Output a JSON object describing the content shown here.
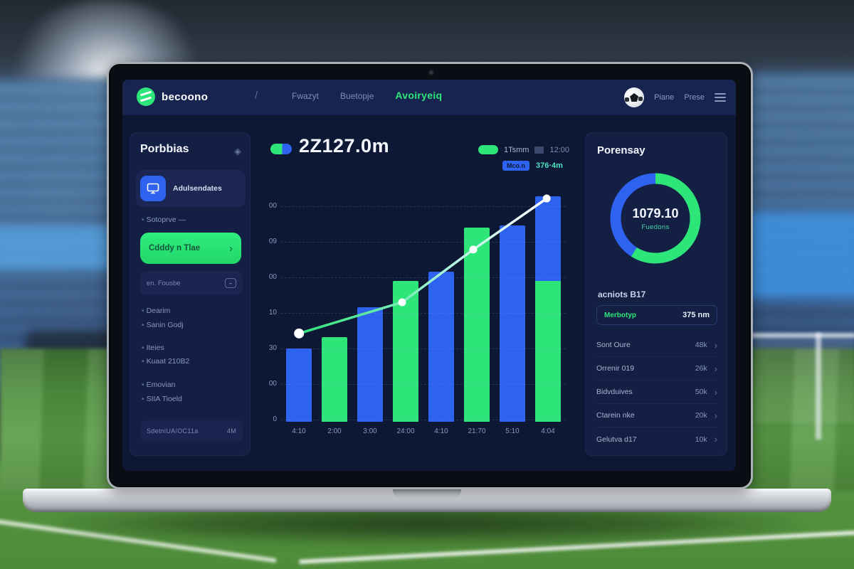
{
  "topbar": {
    "brand": "becoono",
    "divider": "/",
    "nav": [
      {
        "label": "Fwazyt",
        "active": false
      },
      {
        "label": "Buetopje",
        "active": false
      },
      {
        "label": "Avoiryeiq",
        "active": true
      }
    ],
    "right": {
      "item1": "Piane",
      "item2": "Prese"
    }
  },
  "sidebar": {
    "title": "Porbbias",
    "collapse_icon": "◈",
    "active_item": "Adulsendates",
    "section_label": "Sotoprve —",
    "cta_label": "Cdddy n Tlae",
    "cta_arrow": "›",
    "input_label": "en. Fousbe",
    "links": [
      "Dearim",
      "Sanin Godj",
      "Iteies",
      "Kuaat 210B2",
      "Emovian",
      "SIIA Tioeld"
    ],
    "footer": {
      "label": "SdetniUA/OC11a",
      "value": "4M"
    }
  },
  "main": {
    "stat_value": "2Z127.0m",
    "legend": {
      "toggle_label": "1Tsmm",
      "muted_value": "12:00",
      "badge": "Mco.n",
      "teal_value": "376·4m"
    }
  },
  "chart_data": {
    "type": "bar",
    "title": "2Z127.0m",
    "categories": [
      "4:10",
      "2:00",
      "3:00",
      "24:00",
      "4:10",
      "21:70",
      "5:10",
      "4:04"
    ],
    "y_ticks_top_to_bottom": [
      "00",
      "09",
      "00",
      "10",
      "30",
      "00",
      "0"
    ],
    "grid": true,
    "bars": [
      {
        "segments": [
          {
            "color": "blue",
            "pct": 31.7
          }
        ]
      },
      {
        "segments": [
          {
            "color": "green",
            "pct": 36.6
          }
        ]
      },
      {
        "segments": [
          {
            "color": "blue",
            "pct": 49.5
          }
        ]
      },
      {
        "segments": [
          {
            "color": "green",
            "pct": 61.0
          }
        ]
      },
      {
        "segments": [
          {
            "color": "blue",
            "pct": 65.0
          }
        ]
      },
      {
        "segments": [
          {
            "color": "green",
            "pct": 84.0
          }
        ]
      },
      {
        "segments": [
          {
            "color": "blue",
            "pct": 85.0
          }
        ]
      },
      {
        "segments": [
          {
            "color": "green",
            "pct": 61.0
          },
          {
            "color": "blue",
            "pct": 36.5
          }
        ]
      }
    ],
    "line_series": {
      "name": "trend",
      "points_pct": [
        {
          "x": 6.3,
          "y": 38.2
        },
        {
          "x": 42.5,
          "y": 51.7
        },
        {
          "x": 67.5,
          "y": 74.5
        },
        {
          "x": 93.3,
          "y": 96.6
        }
      ]
    }
  },
  "panel": {
    "title": "Porensay",
    "donut": {
      "value": "1079.10",
      "label": "Fuedons",
      "green_pct": 59,
      "blue_pct": 41
    },
    "section_label": "acniots B17",
    "highlight": {
      "label": "Merbotyp",
      "value": "375 nm"
    },
    "rows": [
      {
        "label": "Sont Oure",
        "value": "48k"
      },
      {
        "label": "Orrenir 019",
        "value": "26k"
      },
      {
        "label": "Bidvduives",
        "value": "50k"
      },
      {
        "label": "Ctarein nke",
        "value": "20k"
      },
      {
        "label": "Gelutva d17",
        "value": "10k"
      }
    ]
  },
  "colors": {
    "accent_green": "#2ee57a",
    "accent_blue": "#2e63f0",
    "teal": "#49d6a6",
    "bg_dark": "#0d1834",
    "panel": "#141f44",
    "topbar": "#182450"
  }
}
